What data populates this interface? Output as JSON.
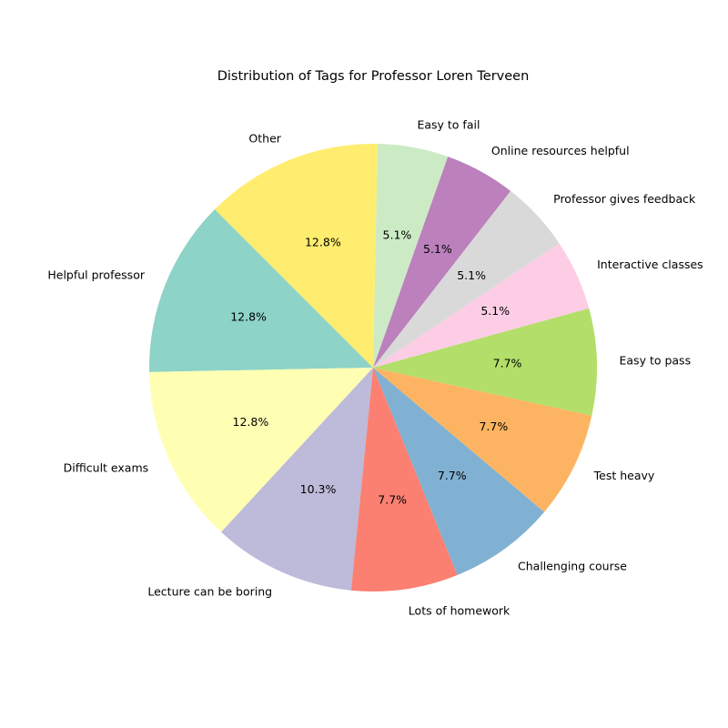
{
  "chart_data": {
    "type": "pie",
    "title": "Distribution of Tags for Professor Loren Terveen",
    "start_angle_deg": 135,
    "direction": "counterclockwise",
    "slices": [
      {
        "label": "Helpful professor",
        "pct_label": "12.8%",
        "value": 12.8,
        "color": "#8dd3c7"
      },
      {
        "label": "Difficult exams",
        "pct_label": "12.8%",
        "value": 12.8,
        "color": "#ffffb3"
      },
      {
        "label": "Lecture can be boring",
        "pct_label": "10.3%",
        "value": 10.3,
        "color": "#bebada"
      },
      {
        "label": "Lots of homework",
        "pct_label": "7.7%",
        "value": 7.7,
        "color": "#fb8072"
      },
      {
        "label": "Challenging course",
        "pct_label": "7.7%",
        "value": 7.7,
        "color": "#80b1d3"
      },
      {
        "label": "Test heavy",
        "pct_label": "7.7%",
        "value": 7.7,
        "color": "#fdb462"
      },
      {
        "label": "Easy to pass",
        "pct_label": "7.7%",
        "value": 7.7,
        "color": "#b3de69"
      },
      {
        "label": "Interactive classes",
        "pct_label": "5.1%",
        "value": 5.1,
        "color": "#fccde5"
      },
      {
        "label": "Professor gives feedback",
        "pct_label": "5.1%",
        "value": 5.1,
        "color": "#d9d9d9"
      },
      {
        "label": "Online resources helpful",
        "pct_label": "5.1%",
        "value": 5.1,
        "color": "#bc80bd"
      },
      {
        "label": "Easy to fail",
        "pct_label": "5.1%",
        "value": 5.1,
        "color": "#ccebc5"
      },
      {
        "label": "Other",
        "pct_label": "12.8%",
        "value": 12.8,
        "color": "#ffed6f"
      }
    ]
  }
}
